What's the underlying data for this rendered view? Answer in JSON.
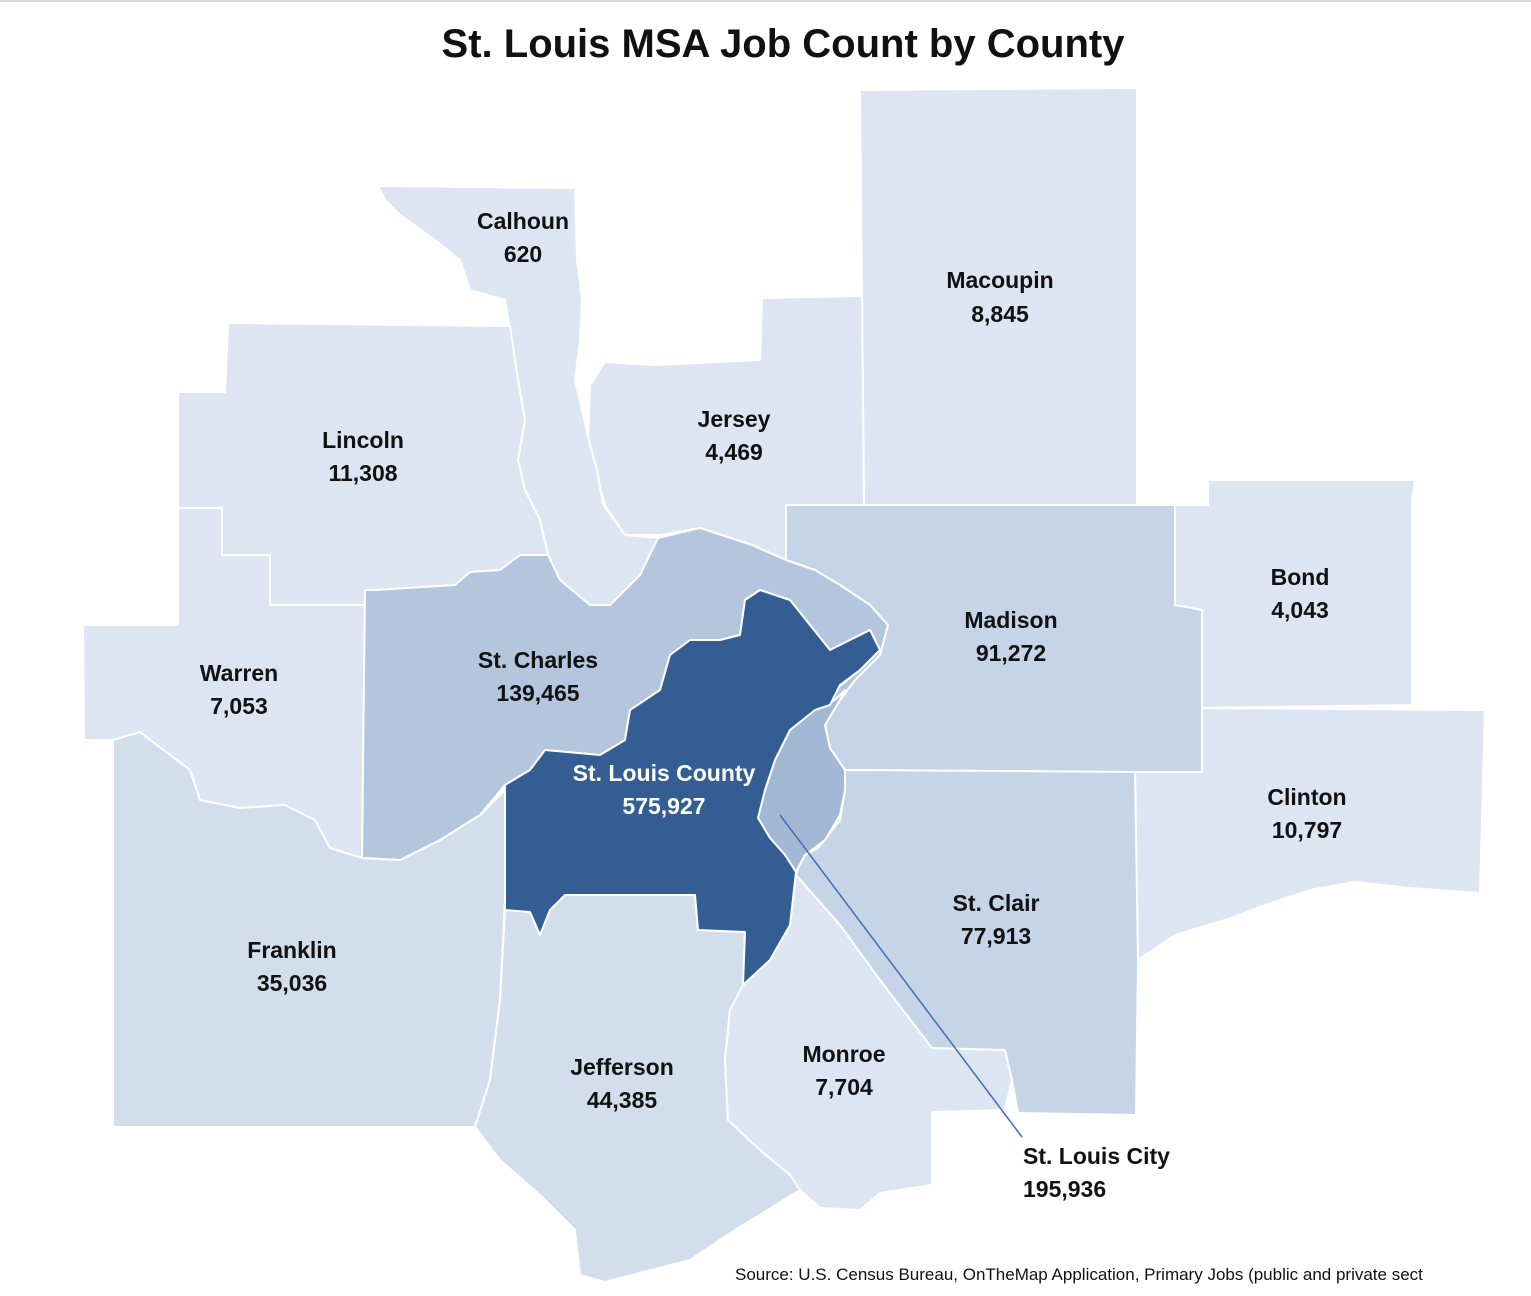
{
  "title": "St. Louis MSA Job Count by County",
  "source": "Source: U.S. Census Bureau, OnTheMap Application, Primary Jobs (public and private sect",
  "colors": {
    "lightest": "#dce5f1",
    "light": "#d3deec",
    "mid_light": "#c6d4e7",
    "mid": "#b3c6de",
    "mid_dark": "#a3b8d4",
    "dark": "#345e93",
    "leader_line": "#3d6db5"
  },
  "counties": [
    {
      "id": "calhoun",
      "name": "Calhoun",
      "jobs": "620",
      "jobs_value": 620
    },
    {
      "id": "macoupin",
      "name": "Macoupin",
      "jobs": "8,845",
      "jobs_value": 8845
    },
    {
      "id": "jersey",
      "name": "Jersey",
      "jobs": "4,469",
      "jobs_value": 4469
    },
    {
      "id": "lincoln",
      "name": "Lincoln",
      "jobs": "11,308",
      "jobs_value": 11308
    },
    {
      "id": "bond",
      "name": "Bond",
      "jobs": "4,043",
      "jobs_value": 4043
    },
    {
      "id": "madison",
      "name": "Madison",
      "jobs": "91,272",
      "jobs_value": 91272
    },
    {
      "id": "warren",
      "name": "Warren",
      "jobs": "7,053",
      "jobs_value": 7053
    },
    {
      "id": "st-charles",
      "name": "St. Charles",
      "jobs": "139,465",
      "jobs_value": 139465
    },
    {
      "id": "st-louis-county",
      "name": "St. Louis County",
      "jobs": "575,927",
      "jobs_value": 575927
    },
    {
      "id": "clinton",
      "name": "Clinton",
      "jobs": "10,797",
      "jobs_value": 10797
    },
    {
      "id": "st-clair",
      "name": "St. Clair",
      "jobs": "77,913",
      "jobs_value": 77913
    },
    {
      "id": "franklin",
      "name": "Franklin",
      "jobs": "35,036",
      "jobs_value": 35036
    },
    {
      "id": "jefferson",
      "name": "Jefferson",
      "jobs": "44,385",
      "jobs_value": 44385
    },
    {
      "id": "monroe",
      "name": "Monroe",
      "jobs": "7,704",
      "jobs_value": 7704
    },
    {
      "id": "st-louis-city",
      "name": "St. Louis City",
      "jobs": "195,936",
      "jobs_value": 195936
    }
  ]
}
